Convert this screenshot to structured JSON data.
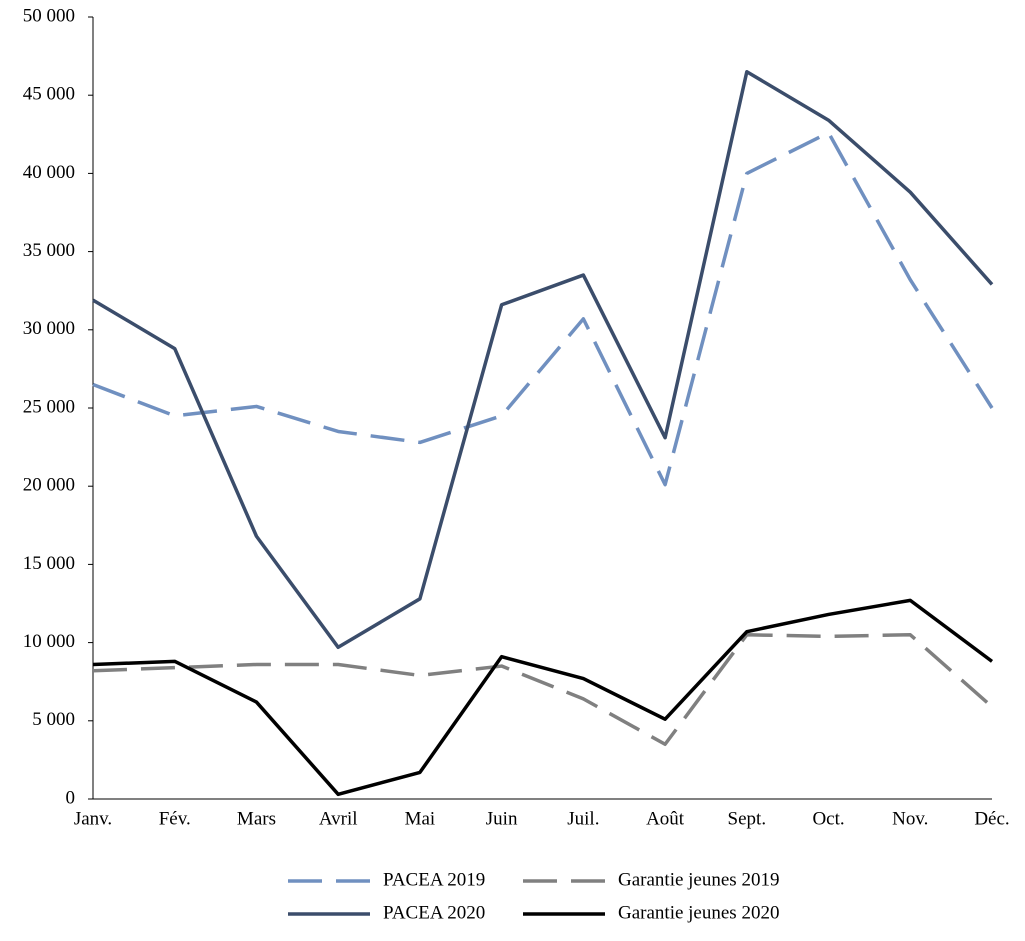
{
  "chart_data": {
    "type": "line",
    "categories": [
      "Janv.",
      "Fév.",
      "Mars",
      "Avril",
      "Mai",
      "Juin",
      "Juil.",
      "Août",
      "Sept.",
      "Oct.",
      "Nov.",
      "Déc."
    ],
    "series": [
      {
        "name": "PACEA 2019",
        "color": "#7090c0",
        "dashed": true,
        "values": [
          26500,
          24500,
          25100,
          23500,
          22800,
          24500,
          30700,
          20100,
          40000,
          42600,
          33200,
          25000
        ]
      },
      {
        "name": "Garantie jeunes 2019",
        "color": "#808080",
        "dashed": true,
        "values": [
          8200,
          8400,
          8600,
          8600,
          7900,
          8500,
          6400,
          3500,
          10500,
          10400,
          10500,
          5900
        ]
      },
      {
        "name": "PACEA 2020",
        "color": "#3b4d6b",
        "dashed": false,
        "values": [
          31900,
          28800,
          16800,
          9700,
          12800,
          31600,
          33500,
          23100,
          46500,
          43400,
          38800,
          32900
        ]
      },
      {
        "name": "Garantie jeunes 2020",
        "color": "#000000",
        "dashed": false,
        "values": [
          8600,
          8800,
          6200,
          300,
          1700,
          9100,
          7700,
          5100,
          10700,
          11800,
          12700,
          8800
        ]
      }
    ],
    "ylim": [
      0,
      50000
    ],
    "yticks": [
      0,
      {
        "value": 5000,
        "label": "5 000"
      },
      {
        "value": 10000,
        "label": "10 000"
      },
      {
        "value": 15000,
        "label": "15 000"
      },
      {
        "value": 20000,
        "label": "20 000"
      },
      {
        "value": 25000,
        "label": "25 000"
      },
      {
        "value": 30000,
        "label": "30 000"
      },
      {
        "value": 35000,
        "label": "35 000"
      },
      {
        "value": 40000,
        "label": "40 000"
      },
      {
        "value": 45000,
        "label": "45 000"
      },
      {
        "value": 50000,
        "label": "50 000"
      }
    ],
    "grid": false,
    "legend": "bottom"
  }
}
